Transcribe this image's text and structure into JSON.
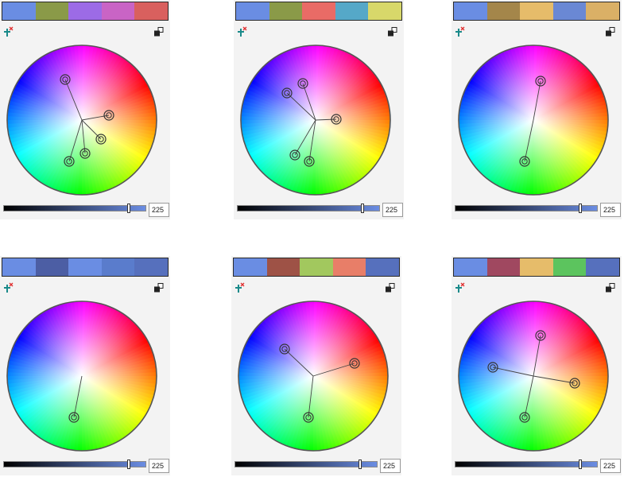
{
  "panels": [
    {
      "swatches": [
        "#6a8de3",
        "#8a9a48",
        "#9c6be6",
        "#c964c5",
        "#d9605e"
      ],
      "handles": [
        [
          75,
          45
        ],
        [
          130,
          90
        ],
        [
          120,
          120
        ],
        [
          100,
          138
        ],
        [
          80,
          148
        ]
      ],
      "brightness": 0.88,
      "value": "225"
    },
    {
      "swatches": [
        "#6a8de3",
        "#8a9a48",
        "#e96b66",
        "#55a8c8",
        "#d8d86a"
      ],
      "handles": [
        [
          60,
          62
        ],
        [
          80,
          50
        ],
        [
          122,
          95
        ],
        [
          70,
          140
        ],
        [
          88,
          148
        ]
      ],
      "brightness": 0.88,
      "value": "225"
    },
    {
      "swatches": [
        "#6a8de3",
        "#a4864a",
        "#e6bc6a",
        "#6a88d4",
        "#dab066"
      ],
      "handles": [
        [
          105,
          47
        ],
        [
          85,
          148
        ]
      ],
      "brightness": 0.88,
      "value": "225"
    },
    {
      "swatches": [
        "#6a8de3",
        "#4c5ea4",
        "#6a8de3",
        "#5a7ccc",
        "#5670bd"
      ],
      "handles": [
        [
          86,
          148
        ]
      ],
      "brightness": 0.88,
      "value": "225"
    },
    {
      "swatches": [
        "#6a8de3",
        "#9e5246",
        "#a2c85e",
        "#e87e68",
        "#5670bd"
      ],
      "handles": [
        [
          60,
          62
        ],
        [
          148,
          80
        ],
        [
          90,
          148
        ]
      ],
      "brightness": 0.88,
      "value": "225"
    },
    {
      "swatches": [
        "#6a8de3",
        "#a04860",
        "#e6bc6a",
        "#5cc45e",
        "#5670bd"
      ],
      "handles": [
        [
          105,
          45
        ],
        [
          45,
          85
        ],
        [
          148,
          105
        ],
        [
          85,
          148
        ]
      ],
      "brightness": 0.88,
      "value": "225"
    }
  ]
}
